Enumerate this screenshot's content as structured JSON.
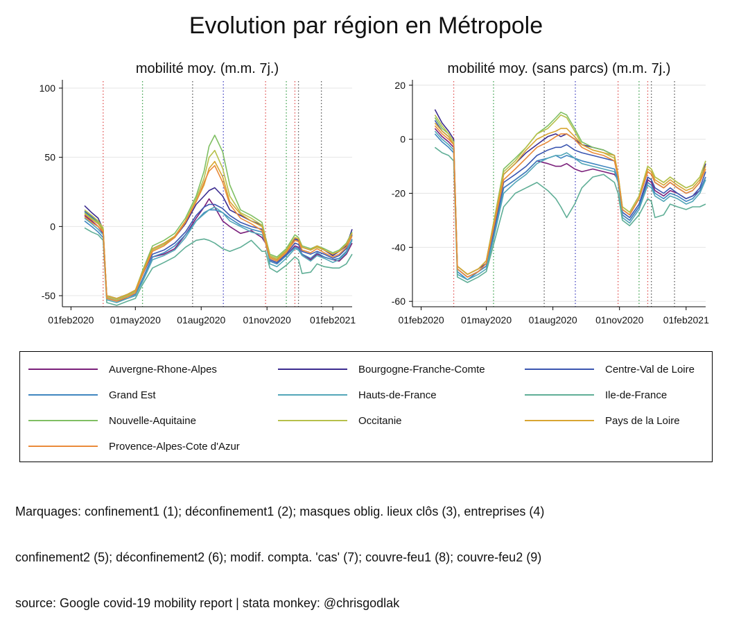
{
  "title": "Evolution par région en Métropole",
  "legend": [
    {
      "name": "Auvergne-Rhone-Alpes",
      "color": "#7a1f7a"
    },
    {
      "name": "Bourgogne-Franche-Comte",
      "color": "#3b2b8f"
    },
    {
      "name": "Centre-Val de Loire",
      "color": "#3a55b0"
    },
    {
      "name": "Grand Est",
      "color": "#3f86c0"
    },
    {
      "name": "Hauts-de-France",
      "color": "#52a6b8"
    },
    {
      "name": "Ile-de-France",
      "color": "#5fae96"
    },
    {
      "name": "Nouvelle-Aquitaine",
      "color": "#7fbf63"
    },
    {
      "name": "Occitanie",
      "color": "#b6c04a"
    },
    {
      "name": "Pays de la Loire",
      "color": "#d8a531"
    },
    {
      "name": "Provence-Alpes-Cote d'Azur",
      "color": "#ea8a3a"
    }
  ],
  "notes": [
    "Marquages: confinement1 (1); déconfinement1 (2); masques oblig. lieux clôs (3), entreprises (4)",
    "confinement2 (5); déconfinement2 (6); modif. compta. 'cas' (7); couvre-feu1 (8); couvre-feu2 (9)",
    "source: Google covid-19 mobility report | stata monkey: @chrisgodlak"
  ],
  "chart_data": [
    {
      "type": "line",
      "title": "mobilité moy. (m.m. 7j.)",
      "xlabel": "",
      "ylabel": "",
      "x_ticks": [
        "01feb2020",
        "01may2020",
        "01aug2020",
        "01nov2020",
        "01feb2021"
      ],
      "x_range": [
        "2020-02-20",
        "2021-02-28"
      ],
      "y_ticks": [
        -50,
        0,
        50,
        100
      ],
      "ylim": [
        -58,
        106
      ],
      "grid": true,
      "markers": [
        {
          "date": "2020-03-17",
          "color": "#e05050"
        },
        {
          "date": "2020-05-11",
          "color": "#3aa04a"
        },
        {
          "date": "2020-07-20",
          "color": "#555555"
        },
        {
          "date": "2020-09-01",
          "color": "#4040c0"
        },
        {
          "date": "2020-10-30",
          "color": "#e05050"
        },
        {
          "date": "2020-11-28",
          "color": "#3aa04a"
        },
        {
          "date": "2020-12-10",
          "color": "#e05050"
        },
        {
          "date": "2020-12-15",
          "color": "#555555"
        },
        {
          "date": "2021-01-16",
          "color": "#555555"
        }
      ],
      "x": [
        "2020-02-20",
        "2020-03-01",
        "2020-03-10",
        "2020-03-17",
        "2020-03-22",
        "2020-04-05",
        "2020-04-20",
        "2020-05-01",
        "2020-05-11",
        "2020-05-25",
        "2020-06-10",
        "2020-06-25",
        "2020-07-10",
        "2020-07-25",
        "2020-08-05",
        "2020-08-12",
        "2020-08-20",
        "2020-08-31",
        "2020-09-10",
        "2020-09-25",
        "2020-10-10",
        "2020-10-25",
        "2020-10-30",
        "2020-11-05",
        "2020-11-15",
        "2020-11-28",
        "2020-12-10",
        "2020-12-15",
        "2020-12-20",
        "2021-01-01",
        "2021-01-10",
        "2021-01-20",
        "2021-02-01",
        "2021-02-10",
        "2021-02-20",
        "2021-02-28"
      ],
      "series": [
        {
          "name": "Auvergne-Rhone-Alpes",
          "values": [
            8,
            4,
            0,
            -5,
            -52,
            -54,
            -52,
            -50,
            -38,
            -22,
            -20,
            -16,
            -6,
            6,
            14,
            20,
            14,
            4,
            0,
            -5,
            -3,
            -8,
            -12,
            -25,
            -27,
            -21,
            -14,
            -15,
            -20,
            -24,
            -20,
            -22,
            -24,
            -25,
            -20,
            -12
          ]
        },
        {
          "name": "Bourgogne-Franche-Comte",
          "values": [
            15,
            10,
            6,
            -2,
            -51,
            -53,
            -50,
            -47,
            -33,
            -16,
            -12,
            -8,
            2,
            16,
            22,
            26,
            28,
            22,
            12,
            8,
            4,
            1,
            -8,
            -22,
            -24,
            -17,
            -9,
            -10,
            -15,
            -17,
            -14,
            -17,
            -21,
            -18,
            -14,
            -2
          ]
        },
        {
          "name": "Centre-Val de Loire",
          "values": [
            11,
            7,
            3,
            -4,
            -50,
            -52,
            -49,
            -46,
            -35,
            -20,
            -17,
            -12,
            -4,
            8,
            14,
            16,
            16,
            13,
            8,
            3,
            0,
            -2,
            -10,
            -24,
            -26,
            -20,
            -12,
            -13,
            -18,
            -20,
            -18,
            -20,
            -23,
            -21,
            -16,
            -6
          ]
        },
        {
          "name": "Grand Est",
          "values": [
            4,
            0,
            -4,
            -8,
            -52,
            -54,
            -51,
            -49,
            -38,
            -22,
            -19,
            -14,
            -6,
            4,
            10,
            12,
            12,
            10,
            6,
            1,
            -2,
            -4,
            -10,
            -25,
            -27,
            -21,
            -15,
            -16,
            -20,
            -23,
            -19,
            -22,
            -24,
            -23,
            -18,
            -9
          ]
        },
        {
          "name": "Hauts-de-France",
          "values": [
            6,
            2,
            -2,
            -6,
            -53,
            -55,
            -52,
            -50,
            -40,
            -24,
            -21,
            -17,
            -8,
            4,
            9,
            12,
            14,
            10,
            4,
            0,
            -4,
            -6,
            -12,
            -27,
            -29,
            -23,
            -16,
            -17,
            -21,
            -25,
            -21,
            -23,
            -26,
            -24,
            -19,
            -10
          ]
        },
        {
          "name": "Ile-de-France",
          "values": [
            -1,
            -4,
            -6,
            -10,
            -55,
            -57,
            -54,
            -52,
            -42,
            -30,
            -26,
            -22,
            -15,
            -10,
            -9,
            -10,
            -12,
            -16,
            -18,
            -15,
            -10,
            -18,
            -18,
            -30,
            -33,
            -28,
            -22,
            -24,
            -34,
            -33,
            -27,
            -29,
            -30,
            -30,
            -27,
            -20
          ]
        },
        {
          "name": "Nouvelle-Aquitaine",
          "values": [
            10,
            6,
            3,
            -2,
            -50,
            -52,
            -49,
            -46,
            -32,
            -14,
            -10,
            -5,
            6,
            22,
            40,
            58,
            66,
            54,
            30,
            12,
            8,
            3,
            -8,
            -20,
            -22,
            -16,
            -6,
            -8,
            -14,
            -16,
            -14,
            -16,
            -19,
            -17,
            -12,
            -4
          ]
        },
        {
          "name": "Occitanie",
          "values": [
            12,
            8,
            4,
            -1,
            -51,
            -53,
            -50,
            -47,
            -34,
            -17,
            -13,
            -8,
            4,
            20,
            35,
            50,
            55,
            42,
            22,
            10,
            6,
            1,
            -9,
            -21,
            -23,
            -17,
            -8,
            -9,
            -15,
            -17,
            -15,
            -17,
            -20,
            -18,
            -13,
            -5
          ]
        },
        {
          "name": "Pays de la Loire",
          "values": [
            9,
            5,
            2,
            -3,
            -50,
            -52,
            -49,
            -46,
            -33,
            -16,
            -12,
            -7,
            4,
            18,
            30,
            42,
            47,
            36,
            18,
            9,
            4,
            0,
            -9,
            -22,
            -24,
            -18,
            -8,
            -9,
            -15,
            -17,
            -14,
            -17,
            -20,
            -18,
            -13,
            -5
          ]
        },
        {
          "name": "Provence-Alpes-Cote d'Azur",
          "values": [
            7,
            3,
            0,
            -4,
            -52,
            -54,
            -51,
            -48,
            -35,
            -18,
            -14,
            -8,
            3,
            18,
            32,
            40,
            44,
            32,
            16,
            6,
            2,
            -3,
            -12,
            -23,
            -25,
            -19,
            -10,
            -11,
            -17,
            -19,
            -16,
            -19,
            -22,
            -20,
            -15,
            -7
          ]
        }
      ]
    },
    {
      "type": "line",
      "title": "mobilité moy. (sans parcs) (m.m. 7j.)",
      "xlabel": "",
      "ylabel": "",
      "x_ticks": [
        "01feb2020",
        "01may2020",
        "01aug2020",
        "01nov2020",
        "01feb2021"
      ],
      "x_range": [
        "2020-02-20",
        "2021-02-28"
      ],
      "y_ticks": [
        -60,
        -40,
        -20,
        0,
        20
      ],
      "ylim": [
        -62,
        22
      ],
      "grid": true,
      "markers": [
        {
          "date": "2020-03-17",
          "color": "#e05050"
        },
        {
          "date": "2020-05-11",
          "color": "#3aa04a"
        },
        {
          "date": "2020-07-20",
          "color": "#555555"
        },
        {
          "date": "2020-09-01",
          "color": "#4040c0"
        },
        {
          "date": "2020-10-30",
          "color": "#e05050"
        },
        {
          "date": "2020-11-28",
          "color": "#3aa04a"
        },
        {
          "date": "2020-12-10",
          "color": "#e05050"
        },
        {
          "date": "2020-12-15",
          "color": "#555555"
        },
        {
          "date": "2021-01-16",
          "color": "#555555"
        }
      ],
      "x": [
        "2020-02-20",
        "2020-03-01",
        "2020-03-10",
        "2020-03-17",
        "2020-03-22",
        "2020-04-05",
        "2020-04-20",
        "2020-05-01",
        "2020-05-11",
        "2020-05-25",
        "2020-06-10",
        "2020-06-25",
        "2020-07-10",
        "2020-07-25",
        "2020-08-05",
        "2020-08-12",
        "2020-08-20",
        "2020-08-31",
        "2020-09-10",
        "2020-09-25",
        "2020-10-10",
        "2020-10-25",
        "2020-10-30",
        "2020-11-05",
        "2020-11-15",
        "2020-11-28",
        "2020-12-10",
        "2020-12-15",
        "2020-12-20",
        "2021-01-01",
        "2021-01-10",
        "2021-01-20",
        "2021-02-01",
        "2021-02-10",
        "2021-02-20",
        "2021-02-28"
      ],
      "series": [
        {
          "name": "Auvergne-Rhone-Alpes",
          "values": [
            4,
            1,
            -1,
            -3,
            -48,
            -51,
            -49,
            -47,
            -35,
            -18,
            -15,
            -12,
            -8,
            -9,
            -10,
            -10,
            -9,
            -11,
            -12,
            -11,
            -12,
            -13,
            -15,
            -28,
            -30,
            -25,
            -15,
            -16,
            -19,
            -21,
            -19,
            -20,
            -22,
            -21,
            -19,
            -14
          ]
        },
        {
          "name": "Bourgogne-Franche-Comte",
          "values": [
            11,
            6,
            3,
            0,
            -47,
            -50,
            -48,
            -46,
            -32,
            -13,
            -9,
            -5,
            -2,
            1,
            2,
            1,
            2,
            0,
            -2,
            -3,
            -4,
            -6,
            -14,
            -26,
            -28,
            -22,
            -12,
            -13,
            -16,
            -18,
            -16,
            -18,
            -20,
            -19,
            -16,
            -9
          ]
        },
        {
          "name": "Centre-Val de Loire",
          "values": [
            7,
            3,
            1,
            -2,
            -48,
            -51,
            -49,
            -46,
            -34,
            -16,
            -13,
            -10,
            -6,
            -4,
            -3,
            -3,
            -2,
            -4,
            -5,
            -6,
            -7,
            -8,
            -14,
            -27,
            -29,
            -24,
            -14,
            -15,
            -18,
            -20,
            -18,
            -20,
            -22,
            -21,
            -18,
            -12
          ]
        },
        {
          "name": "Grand Est",
          "values": [
            2,
            -1,
            -3,
            -5,
            -49,
            -52,
            -49,
            -47,
            -36,
            -18,
            -15,
            -12,
            -8,
            -7,
            -6,
            -7,
            -6,
            -7,
            -8,
            -9,
            -10,
            -11,
            -15,
            -28,
            -30,
            -25,
            -16,
            -17,
            -20,
            -22,
            -20,
            -21,
            -23,
            -22,
            -19,
            -14
          ]
        },
        {
          "name": "Hauts-de-France",
          "values": [
            3,
            0,
            -2,
            -4,
            -50,
            -52,
            -50,
            -48,
            -37,
            -20,
            -16,
            -13,
            -9,
            -7,
            -6,
            -6,
            -5,
            -7,
            -9,
            -10,
            -11,
            -12,
            -16,
            -29,
            -31,
            -26,
            -17,
            -18,
            -21,
            -23,
            -21,
            -22,
            -24,
            -23,
            -20,
            -15
          ]
        },
        {
          "name": "Ile-de-France",
          "values": [
            -3,
            -5,
            -6,
            -8,
            -51,
            -53,
            -51,
            -49,
            -39,
            -25,
            -20,
            -18,
            -16,
            -19,
            -22,
            -25,
            -29,
            -24,
            -18,
            -14,
            -13,
            -16,
            -20,
            -30,
            -32,
            -28,
            -22,
            -23,
            -29,
            -28,
            -24,
            -25,
            -26,
            -25,
            -25,
            -24
          ]
        },
        {
          "name": "Nouvelle-Aquitaine",
          "values": [
            8,
            4,
            2,
            -1,
            -47,
            -50,
            -48,
            -45,
            -31,
            -11,
            -7,
            -3,
            2,
            5,
            8,
            10,
            9,
            4,
            -1,
            -3,
            -4,
            -6,
            -13,
            -25,
            -27,
            -21,
            -10,
            -11,
            -14,
            -16,
            -14,
            -16,
            -18,
            -17,
            -14,
            -8
          ]
        },
        {
          "name": "Occitanie",
          "values": [
            9,
            5,
            2,
            -1,
            -47,
            -50,
            -48,
            -45,
            -31,
            -12,
            -8,
            -3,
            2,
            4,
            7,
            9,
            8,
            3,
            -2,
            -4,
            -5,
            -7,
            -13,
            -25,
            -27,
            -21,
            -10,
            -11,
            -14,
            -16,
            -14,
            -16,
            -18,
            -17,
            -14,
            -8
          ]
        },
        {
          "name": "Pays de la Loire",
          "values": [
            6,
            3,
            1,
            -2,
            -47,
            -50,
            -48,
            -45,
            -32,
            -13,
            -9,
            -4,
            0,
            2,
            3,
            4,
            4,
            1,
            -2,
            -4,
            -5,
            -6,
            -13,
            -26,
            -28,
            -22,
            -11,
            -12,
            -15,
            -17,
            -15,
            -17,
            -19,
            -18,
            -15,
            -10
          ]
        },
        {
          "name": "Provence-Alpes-Cote d'Azur",
          "values": [
            5,
            2,
            0,
            -2,
            -48,
            -51,
            -49,
            -46,
            -33,
            -15,
            -11,
            -7,
            -3,
            -1,
            1,
            2,
            2,
            0,
            -3,
            -5,
            -6,
            -8,
            -14,
            -26,
            -28,
            -22,
            -12,
            -13,
            -16,
            -18,
            -16,
            -18,
            -20,
            -19,
            -16,
            -11
          ]
        }
      ]
    }
  ]
}
